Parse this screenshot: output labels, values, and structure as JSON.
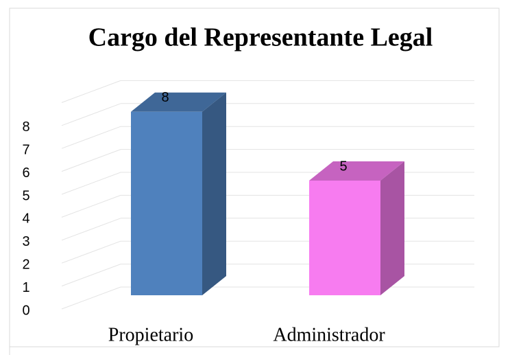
{
  "chart_data": {
    "type": "bar3d",
    "title": "Cargo del Representante Legal",
    "categories": [
      "Propietario",
      "Administrador"
    ],
    "values": [
      8,
      5
    ],
    "colors": [
      "#4f81bd",
      "#f77cf0"
    ],
    "ylim": [
      0,
      9
    ],
    "yticks": [
      0,
      1,
      2,
      3,
      4,
      5,
      6,
      7,
      8
    ],
    "grid": true
  }
}
